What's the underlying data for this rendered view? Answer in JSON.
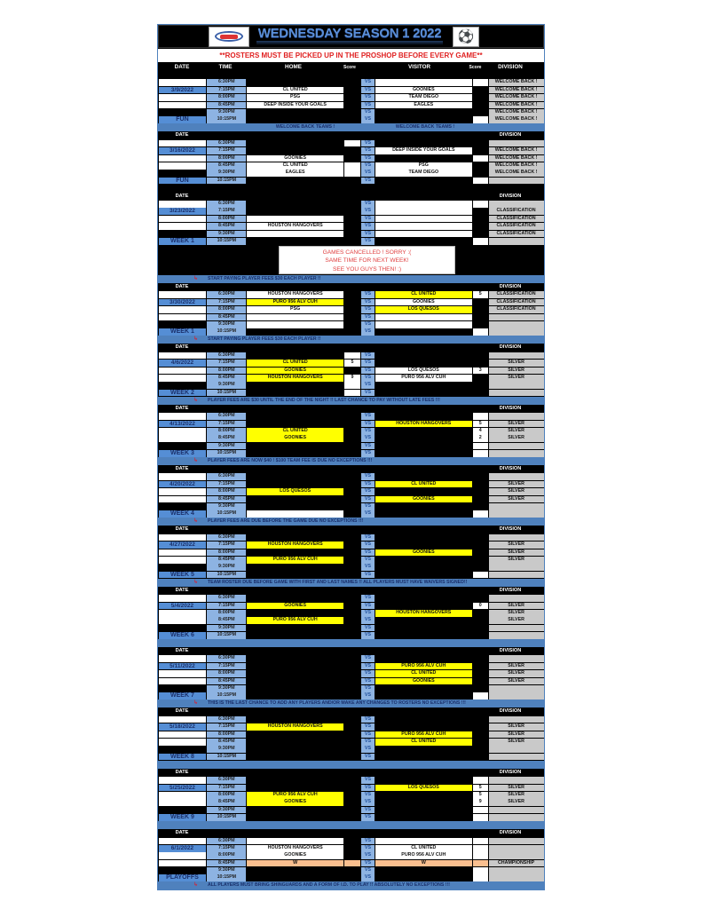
{
  "header": {
    "title": "WEDNESDAY SEASON 1 2022",
    "banner": "**ROSTERS MUST BE PICKED UP IN THE PROSHOP BEFORE EVERY GAME**",
    "columns": [
      "DATE",
      "TIME",
      "HOME",
      "Score",
      "",
      "VISITOR",
      "Score",
      "DIVISION"
    ],
    "block_date_label": "DATE",
    "block_division_label": "DIVISION",
    "vs_label": "VS",
    "logo_icon": "league-logo",
    "ball_icon": "soccer-ball"
  },
  "times": [
    "6:30PM",
    "7:15PM",
    "8:00PM",
    "8:45PM",
    "9:30PM",
    "10:15PM"
  ],
  "colors": {
    "yellow": "#ffff00",
    "white": "#ffffff",
    "black": "#000000",
    "orange": "#fabf8f",
    "blue": "#4f81bd",
    "division_gray": "#c9c9c9",
    "banner_red": "#e02020"
  },
  "cancel_notice": [
    "GAMES CANCELLED ! SORRY :(",
    "SAME TIME FOR NEXT WEEK!",
    "SEE YOU GUYS THEN! :)"
  ],
  "blocks": [
    {
      "date": "3/9/2022",
      "label": "FUN",
      "note": "",
      "note_home": "WELCOME BACK TEAMS !",
      "note_visitor": "WELCOME BACK TEAMS !",
      "home": [
        "",
        "CL UNITED",
        "PSG",
        "DEEP INSIDE YOUR GOALS",
        "",
        ""
      ],
      "home_hl": "bwwwbb",
      "home_score": [
        "",
        "",
        "",
        "",
        "",
        ""
      ],
      "home_score_hl": "bbbbbb",
      "visitor": [
        "",
        "GOONIES",
        "TEAM DIEGO",
        "EAGLES",
        "",
        ""
      ],
      "visitor_hl": "wwwwbb",
      "visitor_score": [
        "",
        "",
        "",
        "",
        "",
        ""
      ],
      "visitor_score_hl": "wbbbbw",
      "division": [
        "WELCOME BACK !",
        "WELCOME BACK !",
        "WELCOME BACK !",
        "WELCOME BACK !",
        "WELCOME BACK !",
        "WELCOME BACK !"
      ]
    },
    {
      "date": "3/16/2022",
      "label": "FUN",
      "note": "",
      "home": [
        "",
        "",
        "GOONIES",
        "CL UNITED",
        "EAGLES",
        ""
      ],
      "home_hl": "bbwwwb",
      "home_score": [
        "",
        "",
        "",
        "",
        "",
        ""
      ],
      "home_score_hl": "wbbwwb",
      "visitor": [
        "",
        "DEEP INSIDE YOUR GOALS",
        "",
        "PSG",
        "TEAM DIEGO",
        ""
      ],
      "visitor_hl": "bwbwwb",
      "visitor_score": [
        "",
        "",
        "",
        "",
        "",
        ""
      ],
      "visitor_score_hl": "bbwbbw",
      "division": [
        "",
        "WELCOME BACK !",
        "WELCOME BACK !",
        "WELCOME BACK !",
        "WELCOME BACK !",
        ""
      ]
    },
    {
      "date": "3/23/2022",
      "label": "WEEK 1",
      "note": "START PAYING PLAYER FEES $30 EACH PLAYER !!",
      "cancelled": true,
      "home": [
        "",
        "",
        "",
        "HOUSTON HANGOVERS",
        "",
        ""
      ],
      "home_hl": "bbwwwb",
      "home_score": [
        "",
        "",
        "",
        "",
        "",
        ""
      ],
      "home_score_hl": "bbbbbb",
      "visitor": [
        "",
        "",
        "",
        "",
        "",
        ""
      ],
      "visitor_hl": "wwwwwb",
      "visitor_score": [
        "",
        "",
        "",
        "",
        "",
        ""
      ],
      "visitor_score_hl": "wbbbbw",
      "division": [
        "",
        "CLASSIFICATION",
        "CLASSIFICATION",
        "CLASSIFICATION",
        "CLASSIFICATION",
        ""
      ]
    },
    {
      "date": "3/30/2022",
      "label": "WEEK 1",
      "note": "START PAYING PLAYER FEES $30 EACH PLAYER !!",
      "home": [
        "HOUSTON HANGOVERS",
        "PURO 956 ALV CUH",
        "PSG",
        "",
        "",
        ""
      ],
      "home_hl": "wywwwb",
      "home_score": [
        "",
        "",
        "",
        "",
        "",
        ""
      ],
      "home_score_hl": "bbbbbb",
      "visitor": [
        "CL UNITED",
        "GOONIES",
        "LOS QUESOS",
        "",
        "",
        ""
      ],
      "visitor_hl": "ywywwb",
      "visitor_score": [
        "5",
        "",
        "",
        "",
        "",
        ""
      ],
      "visitor_score_hl": "wbbbbw",
      "division": [
        "CLASSIFICATION",
        "CLASSIFICATION",
        "CLASSIFICATION",
        "",
        "",
        ""
      ]
    },
    {
      "date": "4/6/2022",
      "label": "WEEK 2",
      "note": "PLAYER FEES ARE $30 UNTIL THE END OF THE NIGHT !! LAST CHANCE TO PAY WITHOUT LATE FEES !!!",
      "home": [
        "",
        "CL UNITED",
        "GOONIES",
        "HOUSTON HANGOVERS",
        "",
        ""
      ],
      "home_hl": "byyybb",
      "home_score": [
        "",
        "5",
        "",
        "9",
        "",
        ""
      ],
      "home_score_hl": "wwbwww",
      "visitor": [
        "",
        "",
        "LOS QUESOS",
        "PURO 956 ALV CUH",
        "",
        ""
      ],
      "visitor_hl": "bbwwbb",
      "visitor_score": [
        "",
        "",
        "3",
        "",
        "",
        ""
      ],
      "visitor_score_hl": "bbwbbb",
      "division": [
        "",
        "SILVER",
        "SILVER",
        "SILVER",
        "",
        ""
      ]
    },
    {
      "date": "4/13/2022",
      "label": "WEEK 3",
      "note": "PLAYER FEES ARE NOW $40 ! $100 TEAM FEE IS DUE NO EXCEPTIONS !!!",
      "home": [
        "",
        "",
        "CL UNITED",
        "GOONIES",
        "",
        ""
      ],
      "home_hl": "bbyybb",
      "home_score": [
        "",
        "",
        "",
        "",
        "",
        ""
      ],
      "home_score_hl": "bbbbbb",
      "visitor": [
        "",
        "HOUSTON HANGOVERS",
        "",
        "",
        "",
        ""
      ],
      "visitor_hl": "bybbbb",
      "visitor_score": [
        "",
        "5",
        "4",
        "2",
        "",
        ""
      ],
      "visitor_score_hl": "wwwwww",
      "division": [
        "",
        "SILVER",
        "SILVER",
        "SILVER",
        "",
        ""
      ]
    },
    {
      "date": "4/20/2022",
      "label": "WEEK 4",
      "note": "PLAYER FEES ARE DUE BEFORE THE GAME DUE NO EXCEPTIONS !!!",
      "home": [
        "",
        "",
        "LOS QUESOS",
        "",
        "",
        ""
      ],
      "home_hl": "bbybbw",
      "home_score": [
        "",
        "",
        "",
        "",
        "",
        ""
      ],
      "home_score_hl": "bbbbbb",
      "visitor": [
        "",
        "CL UNITED",
        "",
        "GOONIES",
        "",
        ""
      ],
      "visitor_hl": "bybybb",
      "visitor_score": [
        "",
        "",
        "",
        "",
        "",
        ""
      ],
      "visitor_score_hl": "bbbbbw",
      "division": [
        "",
        "SILVER",
        "SILVER",
        "SILVER",
        "",
        ""
      ]
    },
    {
      "date": "4/27/2022",
      "label": "WEEK 5",
      "note": "TEAM ROSTER DUE BEFORE GAME WITH FIRST AND LAST NAMES !! ALL PLAYERS MUST HAVE WAIVERS SIGNED!!",
      "home": [
        "",
        "HOUSTON HANGOVERS",
        "",
        "PURO 956 ALV CUH",
        "",
        ""
      ],
      "home_hl": "bybybb",
      "home_score": [
        "",
        "",
        "",
        "",
        "",
        ""
      ],
      "home_score_hl": "bbbbbb",
      "visitor": [
        "",
        "",
        "GOONIES",
        "",
        "",
        ""
      ],
      "visitor_hl": "bbybbb",
      "visitor_score": [
        "",
        "",
        "",
        "",
        "",
        ""
      ],
      "visitor_score_hl": "bbbbbw",
      "division": [
        "",
        "SILVER",
        "SILVER",
        "SILVER",
        "",
        ""
      ]
    },
    {
      "date": "5/4/2022",
      "label": "WEEK 6",
      "note": "",
      "home": [
        "",
        "GOONIES",
        "",
        "PURO 956 ALV CUH",
        "",
        ""
      ],
      "home_hl": "bybybb",
      "home_score": [
        "",
        "",
        "",
        "",
        "",
        ""
      ],
      "home_score_hl": "bbbbbb",
      "visitor": [
        "",
        "",
        "HOUSTON HANGOVERS",
        "",
        "",
        ""
      ],
      "visitor_hl": "bbybbb",
      "visitor_score": [
        "",
        "0",
        "",
        "",
        "",
        ""
      ],
      "visitor_score_hl": "bwbbbb",
      "division": [
        "",
        "SILVER",
        "SILVER",
        "SILVER",
        "",
        ""
      ]
    },
    {
      "date": "5/11/2022",
      "label": "WEEK 7",
      "note": "THIS IS THE LAST CHANCE TO ADD ANY PLAYERS AND/OR MAKE ANY CHANGES TO ROSTERS NO EXCEPTIONS !!!",
      "home": [
        "",
        "",
        "",
        "",
        "",
        ""
      ],
      "home_hl": "bbbbbb",
      "home_score": [
        "",
        "",
        "",
        "",
        "",
        ""
      ],
      "home_score_hl": "bbbbbb",
      "visitor": [
        "",
        "PURO 956 ALV CUH",
        "CL UNITED",
        "GOONIES",
        "",
        ""
      ],
      "visitor_hl": "byyybb",
      "visitor_score": [
        "",
        "",
        "",
        "",
        "",
        ""
      ],
      "visitor_score_hl": "bbbbbw",
      "division": [
        "",
        "SILVER",
        "SILVER",
        "SILVER",
        "",
        ""
      ]
    },
    {
      "date": "5/18/2022",
      "label": "WEEK 8",
      "note": "",
      "home": [
        "",
        "HOUSTON HANGOVERS",
        "",
        "",
        "",
        ""
      ],
      "home_hl": "bybbbb",
      "home_score": [
        "",
        "",
        "",
        "",
        "",
        ""
      ],
      "home_score_hl": "bbbbbb",
      "visitor": [
        "",
        "",
        "PURO 956 ALV CUH",
        "CL UNITED",
        "",
        ""
      ],
      "visitor_hl": "bbyybb",
      "visitor_score": [
        "",
        "",
        "",
        "",
        "",
        ""
      ],
      "visitor_score_hl": "bbbbbb",
      "division": [
        "",
        "SILVER",
        "SILVER",
        "SILVER",
        "",
        ""
      ]
    },
    {
      "date": "5/25/2022",
      "label": "WEEK 9",
      "note": "",
      "home": [
        "",
        "",
        "PURO 956 ALV CUH",
        "GOONIES",
        "",
        ""
      ],
      "home_hl": "bbyybb",
      "home_score": [
        "",
        "",
        "",
        "",
        "",
        ""
      ],
      "home_score_hl": "bbbbbb",
      "visitor": [
        "",
        "LOS QUESOS",
        "",
        "",
        "",
        ""
      ],
      "visitor_hl": "bybbbb",
      "visitor_score": [
        "",
        "5",
        "5",
        "9",
        "",
        ""
      ],
      "visitor_score_hl": "wwwwww",
      "division": [
        "",
        "SILVER",
        "SILVER",
        "SILVER",
        "",
        ""
      ]
    },
    {
      "date": "6/1/2022",
      "label": "PLAYOFFS",
      "note": "ALL PLAYERS MUST BRING SHINGUARDS AND A FORM OF I.D. TO PLAY !! ABSOLUTELY NO EXCEPTIONS !!!",
      "home": [
        "",
        "HOUSTON HANGOVERS",
        "GOONIES",
        "W",
        "",
        ""
      ],
      "home_hl": "wwwobb",
      "home_score": [
        "",
        "",
        "",
        "",
        "",
        ""
      ],
      "home_score_hl": "bbbobb",
      "visitor": [
        "",
        "CL UNITED",
        "PURO 956 ALV CUH",
        "W",
        "",
        ""
      ],
      "visitor_hl": "wwwobb",
      "visitor_score": [
        "",
        "",
        "",
        "",
        "",
        ""
      ],
      "visitor_score_hl": "wwwoww",
      "division": [
        "",
        "",
        "",
        "CHAMPIONSHIP",
        "",
        ""
      ]
    }
  ]
}
